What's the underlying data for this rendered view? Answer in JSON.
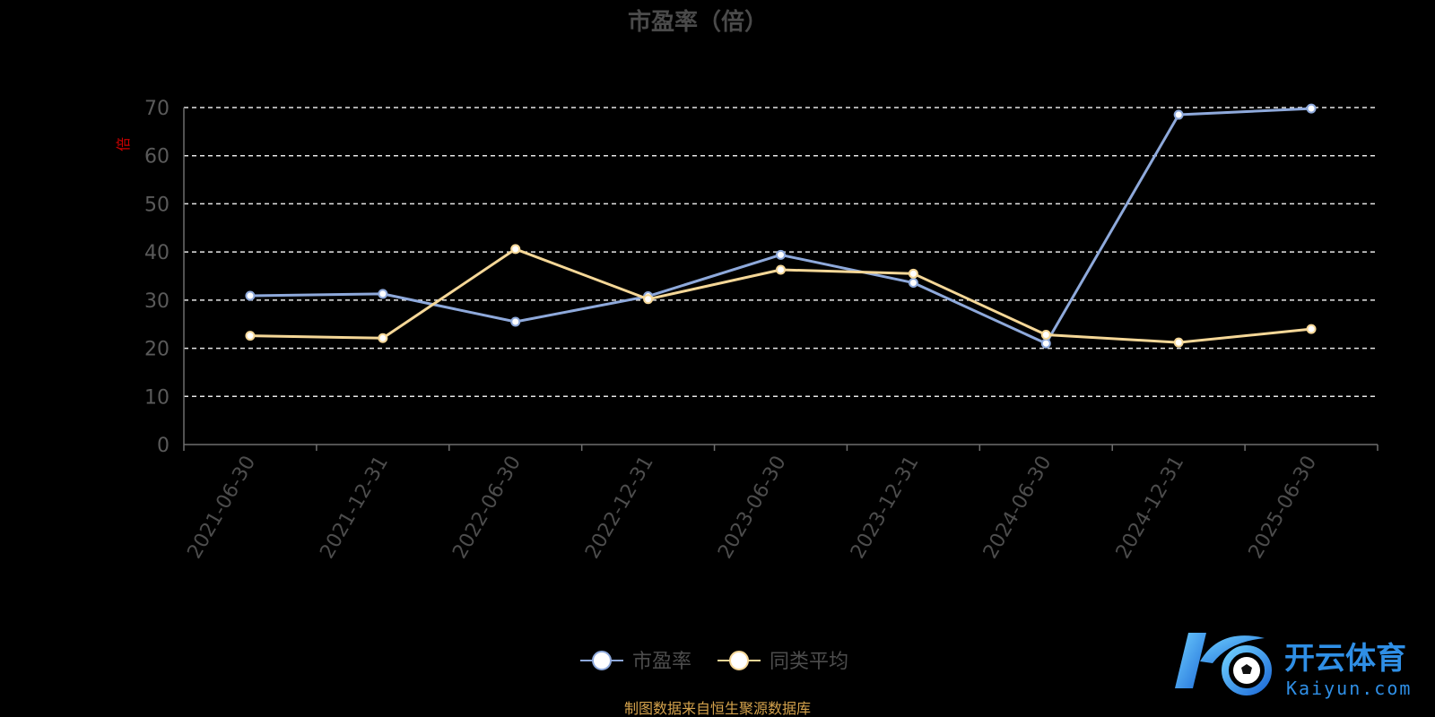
{
  "chart_data": {
    "type": "line",
    "title": "市盈率（倍）",
    "ylabel": "倍",
    "xlabel": "",
    "categories": [
      "2021-06-30",
      "2021-12-31",
      "2022-06-30",
      "2022-12-31",
      "2023-06-30",
      "2023-12-31",
      "2024-06-30",
      "2024-12-31",
      "2025-06-30"
    ],
    "ylim": [
      0,
      70
    ],
    "yticks": [
      0,
      10,
      20,
      30,
      40,
      50,
      60,
      70
    ],
    "grid": true,
    "legend_position": "bottom",
    "series": [
      {
        "name": "市盈率",
        "color": "#8ea9db",
        "values": [
          30.9,
          31.3,
          25.5,
          30.8,
          39.4,
          33.6,
          21.0,
          68.5,
          69.8
        ]
      },
      {
        "name": "同类平均",
        "color": "#f5d797",
        "values": [
          22.6,
          22.1,
          40.6,
          30.2,
          36.3,
          35.5,
          22.8,
          21.2,
          24.0
        ]
      }
    ]
  },
  "footer": {
    "source": "制图数据来自恒生聚源数据库"
  },
  "watermark": {
    "brand": "开云体育",
    "domain": "Kaiyun.com"
  }
}
